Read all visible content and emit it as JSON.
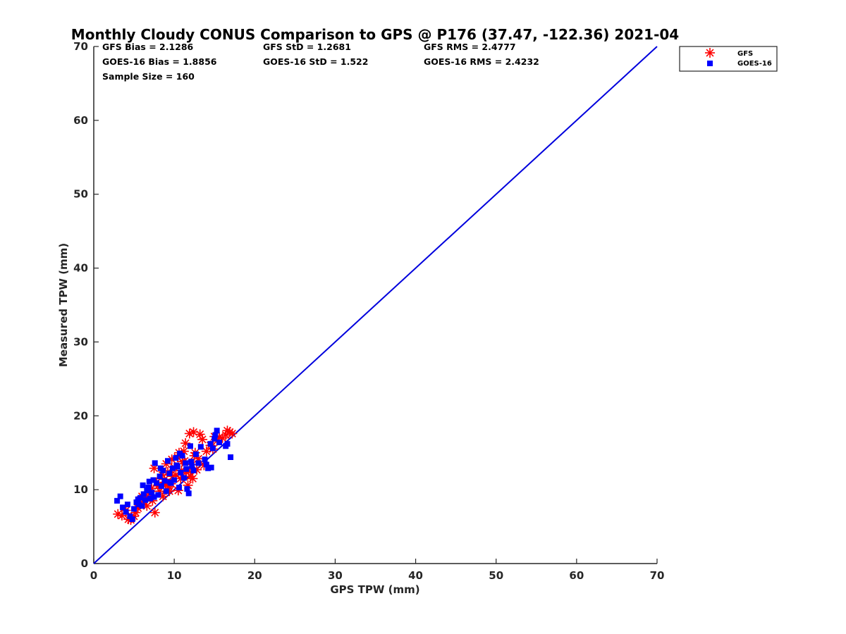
{
  "chart_data": {
    "type": "scatter",
    "title": "Monthly Cloudy CONUS Comparison to GPS @ P176 (37.47, -122.36) 2021-04",
    "xlabel": "GPS TPW (mm)",
    "ylabel": "Measured TPW (mm)",
    "xlim": [
      0,
      70
    ],
    "ylim": [
      0,
      70
    ],
    "xticks": [
      "0",
      "10",
      "20",
      "30",
      "40",
      "50",
      "60",
      "70"
    ],
    "yticks": [
      "0",
      "10",
      "20",
      "30",
      "40",
      "50",
      "60",
      "70"
    ],
    "grid": false,
    "legend_position": "top-right",
    "stats": {
      "gfs_bias": "GFS Bias = 2.1286",
      "gfs_std": "GFS StD = 1.2681",
      "gfs_rms": "GFS RMS = 2.4777",
      "goes_bias": "GOES-16 Bias = 1.8856",
      "goes_std": "GOES-16 StD = 1.522",
      "goes_rms": "GOES-16 RMS = 2.4232",
      "sample_size": "Sample Size = 160"
    },
    "reference_line": {
      "x": [
        0,
        70
      ],
      "y": [
        0,
        70
      ],
      "color": "#0000dd"
    },
    "series": [
      {
        "name": "GFS",
        "marker": "asterisk",
        "color": "#ff0000",
        "points": [
          [
            3.0,
            6.7
          ],
          [
            3.5,
            6.5
          ],
          [
            4.0,
            7.2
          ],
          [
            4.3,
            6.0
          ],
          [
            4.6,
            5.9
          ],
          [
            5.0,
            6.4
          ],
          [
            5.2,
            6.9
          ],
          [
            5.5,
            7.5
          ],
          [
            5.8,
            8.0
          ],
          [
            6.0,
            9.1
          ],
          [
            6.2,
            8.4
          ],
          [
            6.5,
            9.0
          ],
          [
            6.8,
            9.6
          ],
          [
            7.0,
            8.8
          ],
          [
            7.2,
            10.2
          ],
          [
            7.5,
            12.9
          ],
          [
            7.6,
            6.9
          ],
          [
            7.8,
            11.0
          ],
          [
            8.0,
            10.5
          ],
          [
            8.2,
            9.8
          ],
          [
            8.5,
            12.0
          ],
          [
            8.8,
            11.4
          ],
          [
            9.0,
            13.5
          ],
          [
            9.2,
            12.4
          ],
          [
            9.4,
            9.8
          ],
          [
            9.6,
            10.8
          ],
          [
            9.8,
            11.8
          ],
          [
            10.0,
            13.0
          ],
          [
            10.2,
            12.0
          ],
          [
            10.4,
            14.4
          ],
          [
            10.6,
            15.0
          ],
          [
            10.8,
            11.5
          ],
          [
            11.0,
            13.8
          ],
          [
            11.2,
            15.2
          ],
          [
            11.4,
            16.3
          ],
          [
            11.5,
            12.4
          ],
          [
            11.7,
            10.6
          ],
          [
            11.9,
            17.6
          ],
          [
            12.0,
            11.8
          ],
          [
            12.2,
            13.4
          ],
          [
            12.4,
            17.8
          ],
          [
            12.6,
            15.0
          ],
          [
            12.8,
            12.7
          ],
          [
            13.0,
            14.2
          ],
          [
            13.2,
            17.5
          ],
          [
            13.5,
            16.8
          ],
          [
            14.0,
            15.2
          ],
          [
            14.5,
            16.0
          ],
          [
            14.8,
            15.5
          ],
          [
            15.0,
            17.2
          ],
          [
            15.3,
            16.6
          ],
          [
            15.6,
            17.1
          ],
          [
            16.0,
            17.0
          ],
          [
            16.4,
            17.4
          ],
          [
            16.6,
            18.0
          ],
          [
            16.9,
            17.8
          ],
          [
            17.2,
            17.6
          ],
          [
            8.6,
            9.1
          ],
          [
            9.3,
            10.4
          ],
          [
            10.5,
            9.9
          ],
          [
            11.8,
            12.5
          ],
          [
            12.5,
            14.6
          ],
          [
            7.3,
            8.5
          ],
          [
            6.6,
            7.8
          ],
          [
            8.9,
            10.7
          ],
          [
            10.9,
            12.6
          ],
          [
            11.3,
            13.9
          ],
          [
            12.3,
            11.5
          ],
          [
            9.7,
            14.1
          ],
          [
            13.7,
            13.3
          ]
        ]
      },
      {
        "name": "GOES-16",
        "marker": "square",
        "color": "#0000ff",
        "points": [
          [
            2.9,
            8.5
          ],
          [
            3.3,
            9.1
          ],
          [
            3.6,
            7.6
          ],
          [
            4.0,
            7.0
          ],
          [
            4.2,
            8.0
          ],
          [
            4.5,
            6.4
          ],
          [
            4.8,
            6.0
          ],
          [
            5.0,
            7.4
          ],
          [
            5.3,
            8.3
          ],
          [
            5.6,
            8.0
          ],
          [
            5.8,
            8.9
          ],
          [
            6.0,
            7.8
          ],
          [
            6.2,
            9.4
          ],
          [
            6.4,
            8.6
          ],
          [
            6.6,
            9.9
          ],
          [
            6.8,
            10.3
          ],
          [
            7.0,
            8.8
          ],
          [
            7.2,
            9.6
          ],
          [
            7.4,
            11.3
          ],
          [
            7.6,
            13.6
          ],
          [
            7.8,
            10.9
          ],
          [
            8.0,
            9.3
          ],
          [
            8.2,
            11.8
          ],
          [
            8.4,
            10.5
          ],
          [
            8.6,
            12.6
          ],
          [
            8.8,
            11.2
          ],
          [
            9.0,
            9.8
          ],
          [
            9.2,
            13.9
          ],
          [
            9.4,
            12.2
          ],
          [
            9.6,
            10.9
          ],
          [
            9.8,
            12.9
          ],
          [
            10.0,
            11.3
          ],
          [
            10.2,
            14.3
          ],
          [
            10.4,
            13.1
          ],
          [
            10.6,
            10.3
          ],
          [
            10.8,
            12.3
          ],
          [
            11.0,
            14.6
          ],
          [
            11.2,
            11.6
          ],
          [
            11.4,
            13.6
          ],
          [
            11.6,
            10.1
          ],
          [
            11.8,
            9.5
          ],
          [
            12.0,
            15.9
          ],
          [
            12.2,
            13.2
          ],
          [
            12.4,
            12.6
          ],
          [
            12.7,
            14.8
          ],
          [
            13.0,
            13.6
          ],
          [
            13.3,
            15.8
          ],
          [
            13.8,
            14.1
          ],
          [
            14.0,
            13.4
          ],
          [
            14.2,
            12.9
          ],
          [
            14.5,
            16.2
          ],
          [
            14.8,
            15.6
          ],
          [
            15.0,
            16.9
          ],
          [
            15.3,
            18.0
          ],
          [
            15.6,
            16.4
          ],
          [
            16.4,
            15.9
          ],
          [
            16.6,
            16.2
          ],
          [
            17.0,
            14.4
          ],
          [
            14.6,
            13.0
          ],
          [
            15.1,
            17.4
          ],
          [
            6.1,
            10.6
          ],
          [
            6.9,
            11.1
          ],
          [
            7.5,
            9.0
          ],
          [
            8.3,
            12.9
          ],
          [
            9.5,
            11.0
          ],
          [
            10.3,
            13.3
          ],
          [
            10.7,
            14.9
          ],
          [
            11.5,
            12.8
          ],
          [
            12.1,
            13.8
          ],
          [
            5.5,
            8.7
          ]
        ]
      }
    ]
  }
}
